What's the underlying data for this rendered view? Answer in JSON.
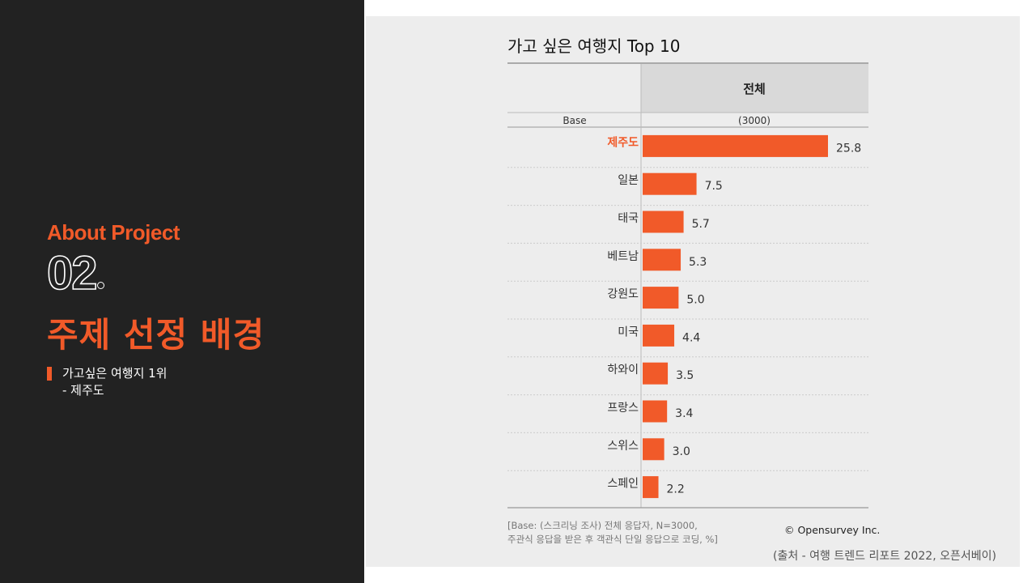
{
  "sidebar": {
    "about": "About Project",
    "number": "02",
    "heading": "주제 선정 배경",
    "sub_line1": "가고싶은 여행지 1위",
    "sub_line2": "- 제주도"
  },
  "chart_data": {
    "type": "bar",
    "orientation": "horizontal",
    "title": "가고 싶은 여행지 Top 10",
    "column_header": "전체",
    "base_label": "Base",
    "base_value": "(3000)",
    "categories": [
      "제주도",
      "일본",
      "태국",
      "베트남",
      "강원도",
      "미국",
      "하와이",
      "프랑스",
      "스위스",
      "스페인"
    ],
    "values": [
      25.8,
      7.5,
      5.7,
      5.3,
      5.0,
      4.4,
      3.5,
      3.4,
      3.0,
      2.2
    ],
    "value_labels": [
      "25.8",
      "7.5",
      "5.7",
      "5.3",
      "5.0",
      "4.4",
      "3.5",
      "3.4",
      "3.0",
      "2.2"
    ],
    "highlight": "제주도",
    "bar_color": "#f15a29",
    "highlight_color": "#f15a29",
    "footnote_line1": "[Base: (스크리닝 조사) 전체 응답자, N=3000,",
    "footnote_line2": "주관식 응답을 받은 후 객관식 단일 응답으로 코딩, %]",
    "copyright": "© Opensurvey Inc."
  },
  "source": "(출처 - 여행 트렌드 리포트 2022, 오픈서베이)"
}
